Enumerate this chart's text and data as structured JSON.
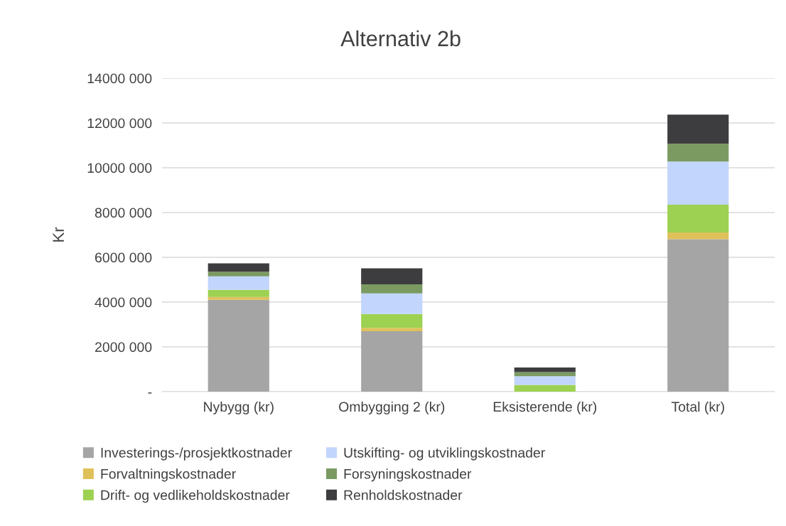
{
  "chart_data": {
    "type": "bar",
    "title": "Alternativ 2b",
    "ylabel": "Kr",
    "stacked": true,
    "categories": [
      "Nybygg (kr)",
      "Ombygging 2 (kr)",
      "Eksisterende (kr)",
      "Total (kr)"
    ],
    "series": [
      {
        "name": "Investerings-/prosjektkostnader",
        "color": "#a5a5a5",
        "values": [
          4100000,
          2700000,
          0,
          6810000
        ]
      },
      {
        "name": "Forvaltningskostnader",
        "color": "#dfc15a",
        "values": [
          130000,
          150000,
          0,
          300000
        ]
      },
      {
        "name": "Drift- og vedlikeholdskostnader",
        "color": "#9dd152",
        "values": [
          320000,
          620000,
          300000,
          1240000
        ]
      },
      {
        "name": "Utskifting- og utviklingskostnader",
        "color": "#c2d5fc",
        "values": [
          600000,
          920000,
          390000,
          1930000
        ]
      },
      {
        "name": "Forsyningskostnader",
        "color": "#7a9a62",
        "values": [
          210000,
          400000,
          180000,
          790000
        ]
      },
      {
        "name": "Renholdskostnader",
        "color": "#3d3d3f",
        "values": [
          370000,
          720000,
          210000,
          1300000
        ]
      }
    ],
    "ylim": [
      0,
      14000000
    ],
    "yticks": [
      {
        "value": 0,
        "label": "-"
      },
      {
        "value": 2000000,
        "label": "2000 000"
      },
      {
        "value": 4000000,
        "label": "4000 000"
      },
      {
        "value": 6000000,
        "label": "6000 000"
      },
      {
        "value": 8000000,
        "label": "8000 000"
      },
      {
        "value": 10000000,
        "label": "10000 000"
      },
      {
        "value": 12000000,
        "label": "12000 000"
      },
      {
        "value": 14000000,
        "label": "14000 000"
      }
    ],
    "grid": "y",
    "legend": "bottom"
  }
}
